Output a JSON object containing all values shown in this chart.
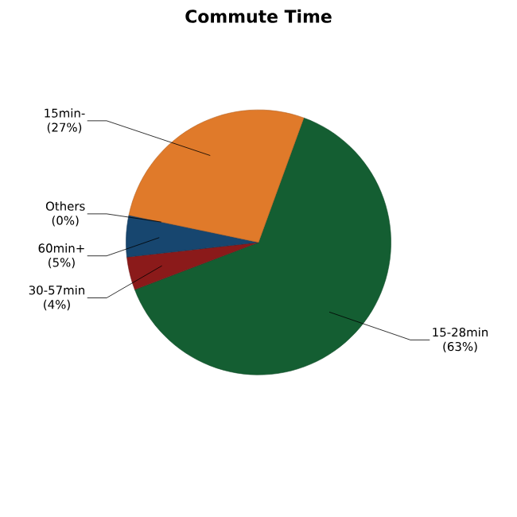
{
  "chart_data": {
    "type": "pie",
    "title": "Commute Time",
    "categories": [
      "15-28min",
      "30-57min",
      "60min+",
      "Others",
      "15min-"
    ],
    "values": [
      63,
      4,
      5,
      0,
      27
    ],
    "value_labels": [
      "(63%)",
      "(4%)",
      "(5%)",
      "(0%)",
      "(27%)"
    ],
    "colors": [
      "#145e32",
      "#8b1a1a",
      "#17466f",
      "#888888",
      "#e07a2a"
    ]
  }
}
